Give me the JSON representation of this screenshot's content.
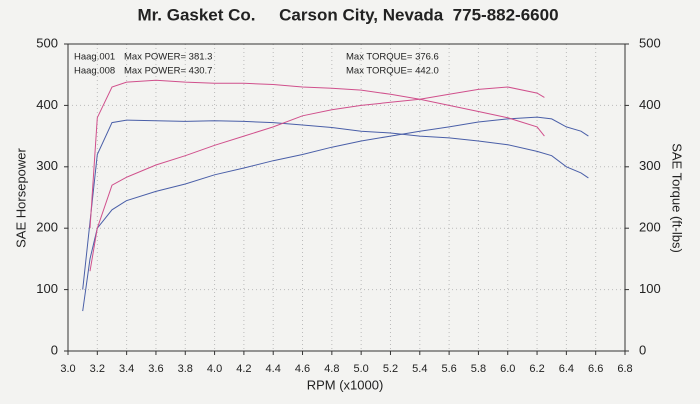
{
  "chart_data": {
    "type": "line",
    "title": "Mr. Gasket Co.     Carson City, Nevada  775-882-6600",
    "xlabel": "RPM (x1000)",
    "ylabel": "SAE Horsepower",
    "y2label": "SAE Torque (ft-lbs)",
    "xlim": [
      3.0,
      6.8
    ],
    "xticks": [
      {
        "value": 3.0,
        "label": "3.0"
      },
      {
        "value": 3.2,
        "label": "3.2"
      },
      {
        "value": 3.4,
        "label": "3.4"
      },
      {
        "value": 3.6,
        "label": "3.6"
      },
      {
        "value": 3.8,
        "label": "3.8"
      },
      {
        "value": 4.0,
        "label": "4.0"
      },
      {
        "value": 4.2,
        "label": "4.2"
      },
      {
        "value": 4.4,
        "label": "4.4"
      },
      {
        "value": 4.6,
        "label": "4.6"
      },
      {
        "value": 4.8,
        "label": "4.8"
      },
      {
        "value": 5.0,
        "label": "5.0"
      },
      {
        "value": 5.2,
        "label": "5.2"
      },
      {
        "value": 5.4,
        "label": "5.4"
      },
      {
        "value": 5.6,
        "label": "5.6"
      },
      {
        "value": 5.8,
        "label": "5.8"
      },
      {
        "value": 6.0,
        "label": "6.0"
      },
      {
        "value": 6.2,
        "label": "6.2"
      },
      {
        "value": 6.4,
        "label": "6.4"
      },
      {
        "value": 6.6,
        "label": "6.6"
      },
      {
        "value": 6.8,
        "label": "6.8"
      }
    ],
    "ylim": [
      0,
      500
    ],
    "yticks": [
      0,
      100,
      200,
      300,
      400,
      500
    ],
    "y2lim": [
      0,
      500
    ],
    "y2ticks": [
      0,
      100,
      200,
      300,
      400,
      500
    ],
    "grid": true,
    "legend": [
      {
        "label": "Haag.001",
        "power": "Max POWER= 381.3",
        "torque": "Max TORQUE= 376.6",
        "color": "#4a5fa8"
      },
      {
        "label": "Haag.008",
        "power": "Max POWER= 430.7",
        "torque": "Max TORQUE= 442.0",
        "color": "#d0508c"
      }
    ],
    "series": [
      {
        "color": "#4a5fa8",
        "x": [
          3.1,
          3.15,
          3.2,
          3.3,
          3.4,
          3.6,
          3.8,
          4.0,
          4.2,
          4.4,
          4.6,
          4.8,
          5.0,
          5.2,
          5.4,
          5.6,
          5.8,
          6.0,
          6.2,
          6.3,
          6.4,
          6.5,
          6.55
        ],
        "values": [
          65,
          150,
          200,
          230,
          245,
          260,
          272,
          287,
          298,
          310,
          320,
          332,
          342,
          350,
          358,
          365,
          373,
          378,
          381,
          378,
          365,
          358,
          350
        ]
      },
      {
        "color": "#4a5fa8",
        "axis": "y2",
        "x": [
          3.1,
          3.2,
          3.3,
          3.4,
          3.6,
          3.8,
          4.0,
          4.2,
          4.4,
          4.6,
          4.8,
          5.0,
          5.2,
          5.4,
          5.6,
          5.8,
          6.0,
          6.2,
          6.3,
          6.4,
          6.5,
          6.55
        ],
        "values": [
          100,
          320,
          372,
          376,
          375,
          374,
          375,
          374,
          372,
          368,
          364,
          358,
          355,
          350,
          347,
          342,
          336,
          325,
          318,
          300,
          290,
          282
        ]
      },
      {
        "color": "#d0508c",
        "x": [
          3.15,
          3.2,
          3.3,
          3.4,
          3.6,
          3.8,
          4.0,
          4.2,
          4.4,
          4.6,
          4.8,
          5.0,
          5.2,
          5.4,
          5.6,
          5.8,
          6.0,
          6.2,
          6.25
        ],
        "values": [
          130,
          200,
          270,
          283,
          303,
          318,
          335,
          350,
          365,
          383,
          393,
          400,
          405,
          410,
          418,
          426,
          430,
          420,
          413
        ]
      },
      {
        "color": "#d0508c",
        "axis": "y2",
        "x": [
          3.15,
          3.2,
          3.3,
          3.4,
          3.6,
          3.8,
          4.0,
          4.2,
          4.4,
          4.6,
          4.8,
          5.0,
          5.2,
          5.4,
          5.6,
          5.8,
          6.0,
          6.2,
          6.25
        ],
        "values": [
          200,
          380,
          430,
          438,
          441,
          438,
          436,
          436,
          434,
          430,
          428,
          425,
          418,
          410,
          400,
          390,
          380,
          365,
          350
        ]
      }
    ]
  }
}
